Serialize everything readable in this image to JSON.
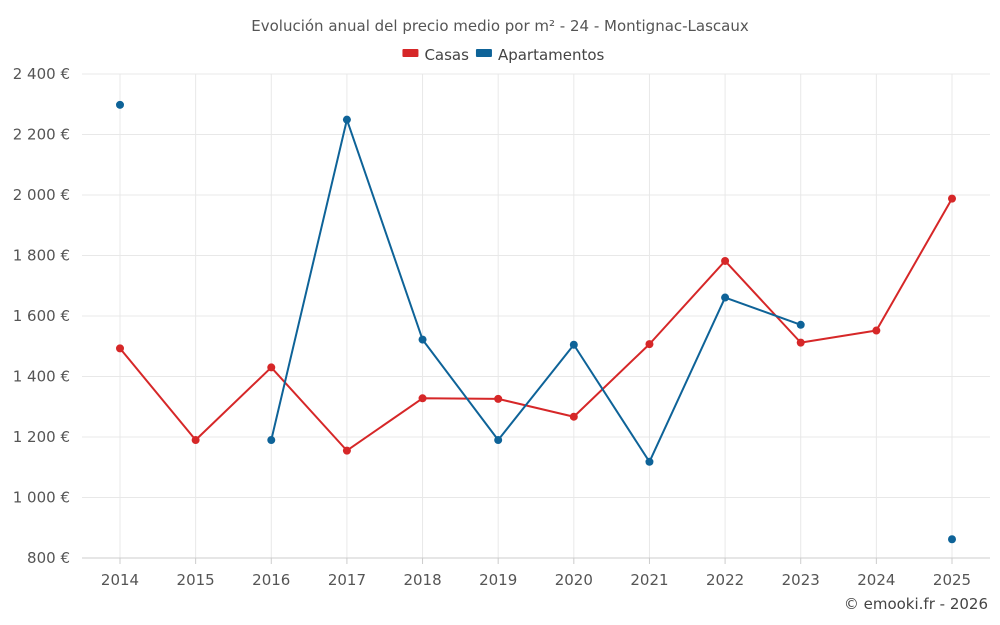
{
  "chart_data": {
    "type": "line",
    "title": "Evolución anual del precio medio por m² - 24 - Montignac-Lascaux",
    "categories": [
      "2014",
      "2015",
      "2016",
      "2017",
      "2018",
      "2019",
      "2020",
      "2021",
      "2022",
      "2023",
      "2024",
      "2025"
    ],
    "ylim": [
      800,
      2400
    ],
    "yticks": [
      800,
      1000,
      1200,
      1400,
      1600,
      1800,
      2000,
      2200,
      2400
    ],
    "ytick_labels": [
      "800 €",
      "1 000 €",
      "1 200 €",
      "1 400 €",
      "1 600 €",
      "1 800 €",
      "2 000 €",
      "2 200 €",
      "2 400 €"
    ],
    "legend_position": "top-center",
    "grid": true,
    "series": [
      {
        "name": "Casas",
        "color": "#d62728",
        "values": [
          1493,
          1190,
          1430,
          1155,
          1328,
          1326,
          1267,
          1507,
          1782,
          1512,
          1552,
          1988
        ]
      },
      {
        "name": "Apartamentos",
        "color": "#0e6398",
        "values": [
          2298,
          null,
          1190,
          2249,
          1522,
          1190,
          1505,
          1118,
          1661,
          1571,
          null,
          862
        ]
      }
    ]
  },
  "credit": "© emooki.fr - 2026"
}
